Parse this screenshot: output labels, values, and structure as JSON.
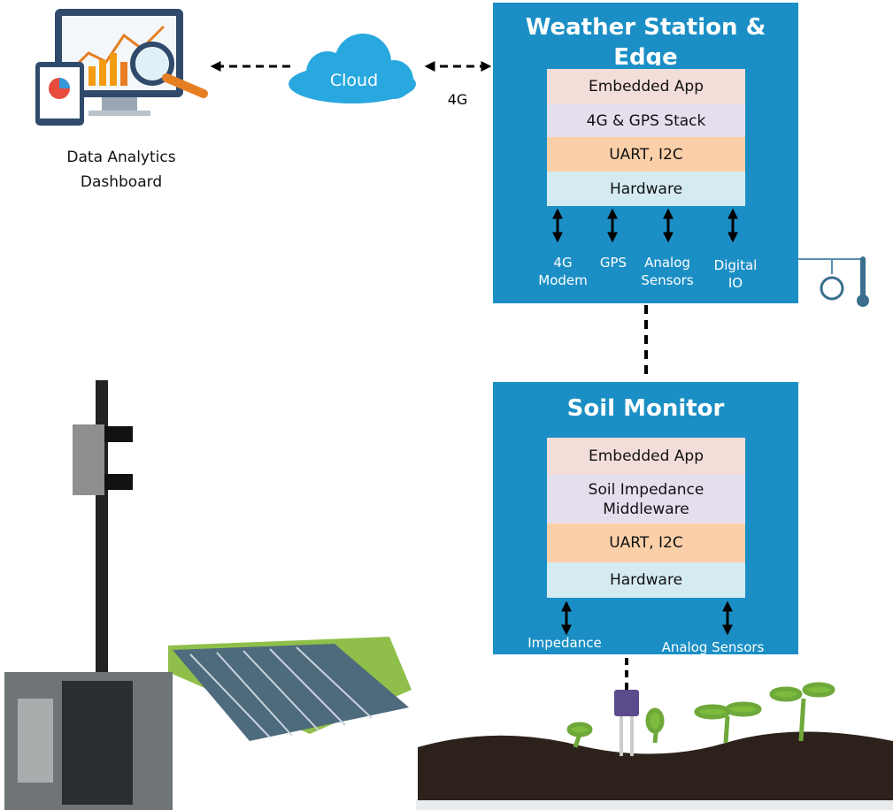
{
  "weather_station": {
    "title": "Weather Station & Edge",
    "layers": [
      "Embedded App",
      "4G & GPS Stack",
      "UART, I2C",
      "Hardware"
    ],
    "interfaces": [
      "4G Modem",
      "GPS",
      "Analog Sensors",
      "Digital IO"
    ]
  },
  "soil_monitor": {
    "title": "Soil Monitor",
    "layers": [
      "Embedded App",
      "Soil Impedance Middleware",
      "UART, I2C",
      "Hardware"
    ],
    "interfaces": [
      "Impedance",
      "Analog Sensors"
    ]
  },
  "cloud": {
    "label": "Cloud",
    "link_label": "4G"
  },
  "dashboard": {
    "label": "Data Analytics Dashboard"
  }
}
